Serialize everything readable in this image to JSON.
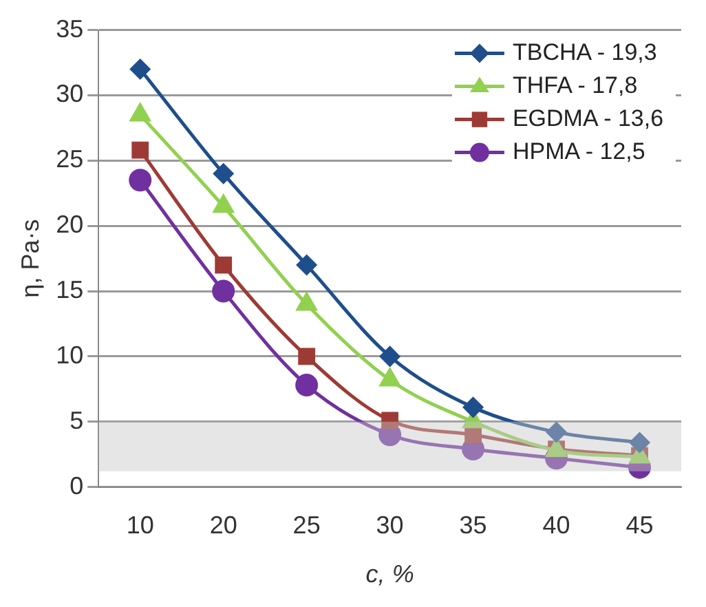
{
  "chart_data": {
    "type": "line",
    "xlabel": "c, %",
    "ylabel": "η, Pa·s",
    "categories": [
      "10",
      "20",
      "25",
      "30",
      "35",
      "40",
      "45"
    ],
    "series": [
      {
        "name": "TBCHA - 19,3",
        "color": "#1f4e8c",
        "marker": "diamond",
        "values": [
          32,
          24,
          17,
          10,
          6.1,
          4.2,
          3.4
        ]
      },
      {
        "name": "THFA - 17,8",
        "color": "#92d050",
        "marker": "triangle",
        "values": [
          28.5,
          21.5,
          14,
          8.2,
          5,
          2.8,
          2.3
        ]
      },
      {
        "name": "EGDMA - 13,6",
        "color": "#9e3a35",
        "marker": "square",
        "values": [
          25.8,
          17,
          10,
          5.1,
          4,
          2.9,
          2.4
        ]
      },
      {
        "name": "HPMA - 12,5",
        "color": "#7030a0",
        "marker": "circle",
        "values": [
          23.5,
          15,
          7.8,
          4,
          2.9,
          2.2,
          1.5
        ]
      }
    ],
    "ylim": [
      0,
      35
    ],
    "yticks": [
      0,
      5,
      10,
      15,
      20,
      25,
      30,
      35
    ],
    "grid": "y",
    "legend": "top right",
    "bands": [
      {
        "axis": "y",
        "from": 1.2,
        "to": 5,
        "color": "#c8c8c8"
      }
    ]
  }
}
